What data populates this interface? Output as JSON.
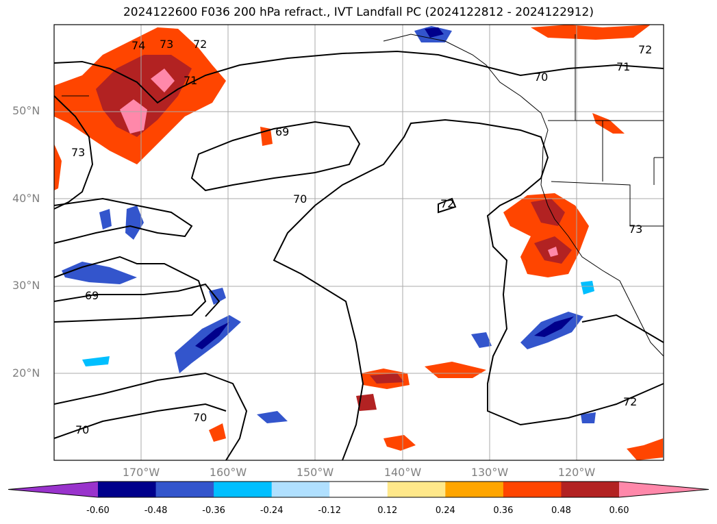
{
  "title": "2024122600 F036 200 hPa refract., IVT Landfall PC (2024122812 - 2024122912)",
  "map": {
    "projection": "PlateCarree",
    "lon_range": [
      -180,
      -110
    ],
    "lat_range": [
      10,
      60
    ],
    "gridlines": true,
    "coastlines": true,
    "state_borders": true
  },
  "lat_ticks": [
    {
      "value": 50,
      "label": "50°N"
    },
    {
      "value": 40,
      "label": "40°N"
    },
    {
      "value": 30,
      "label": "30°N"
    },
    {
      "value": 20,
      "label": "20°N"
    }
  ],
  "lon_ticks": [
    {
      "value": -170,
      "label": "170°W"
    },
    {
      "value": -160,
      "label": "160°W"
    },
    {
      "value": -150,
      "label": "150°W"
    },
    {
      "value": -140,
      "label": "140°W"
    },
    {
      "value": -130,
      "label": "130°W"
    },
    {
      "value": -120,
      "label": "120°W"
    }
  ],
  "contour_labels": [
    "74",
    "73",
    "72",
    "71",
    "70",
    "69",
    "72",
    "71",
    "73",
    "69",
    "70",
    "72",
    "73",
    "70",
    "70",
    "72"
  ],
  "colorbar": {
    "extend": "both",
    "boundaries": [
      "-0.60",
      "-0.48",
      "-0.36",
      "-0.24",
      "-0.12",
      "0.12",
      "0.24",
      "0.36",
      "0.48",
      "0.60"
    ],
    "colors": [
      "#9933cc",
      "#00008b",
      "#3355cc",
      "#00bfff",
      "#b0e0ff",
      "#ffffff",
      "#ffe88a",
      "#ffa500",
      "#ff4500",
      "#b22222",
      "#ff88aa"
    ]
  }
}
